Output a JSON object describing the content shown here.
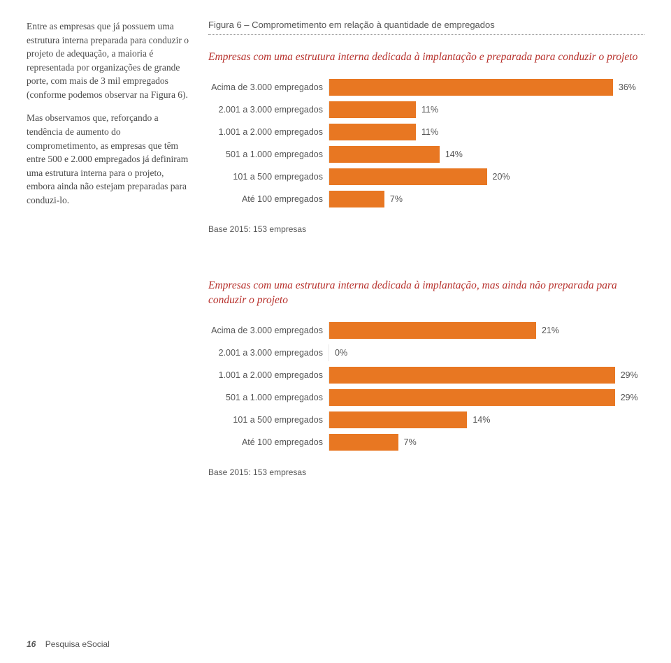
{
  "left_paragraphs": [
    "Entre as empresas que já possuem uma estrutura interna preparada para conduzir o projeto de adequação, a maioria é representada por organizações de grande porte, com mais de 3 mil empregados (conforme podemos observar na Figura 6).",
    "Mas observamos que, reforçando a tendência de aumento do comprometimento, as empresas que têm entre 500 e 2.000 empregados já definiram uma estrutura interna para o projeto, embora ainda não estejam preparadas para conduzi-lo."
  ],
  "figure_title": "Figura 6 – Comprometimento em relação à quantidade de empregados",
  "chart1": {
    "heading": "Empresas com uma estrutura interna dedicada à implantação e preparada para conduzir o projeto",
    "bar_color": "#e87722",
    "max_pct": 40,
    "rows": [
      {
        "label": "Acima de 3.000 empregados",
        "value": 36,
        "display": "36%"
      },
      {
        "label": "2.001 a 3.000 empregados",
        "value": 11,
        "display": "11%"
      },
      {
        "label": "1.001 a 2.000 empregados",
        "value": 11,
        "display": "11%"
      },
      {
        "label": "501 a 1.000 empregados",
        "value": 14,
        "display": "14%"
      },
      {
        "label": "101 a 500 empregados",
        "value": 20,
        "display": "20%"
      },
      {
        "label": "Até 100 empregados",
        "value": 7,
        "display": "7%"
      }
    ],
    "base_note": "Base 2015: 153 empresas"
  },
  "chart2": {
    "heading": "Empresas com uma estrutura interna dedicada à implantação, mas ainda não preparada para conduzir o projeto",
    "bar_color": "#e87722",
    "max_pct": 32,
    "rows": [
      {
        "label": "Acima de 3.000 empregados",
        "value": 21,
        "display": "21%"
      },
      {
        "label": "2.001 a 3.000 empregados",
        "value": 0,
        "display": "0%"
      },
      {
        "label": "1.001 a 2.000 empregados",
        "value": 29,
        "display": "29%"
      },
      {
        "label": "501 a 1.000 empregados",
        "value": 29,
        "display": "29%"
      },
      {
        "label": "101 a 500 empregados",
        "value": 14,
        "display": "14%"
      },
      {
        "label": "Até 100 empregados",
        "value": 7,
        "display": "7%"
      }
    ],
    "base_note": "Base 2015: 153 empresas"
  },
  "footer": {
    "page": "16",
    "doc": "Pesquisa eSocial"
  }
}
